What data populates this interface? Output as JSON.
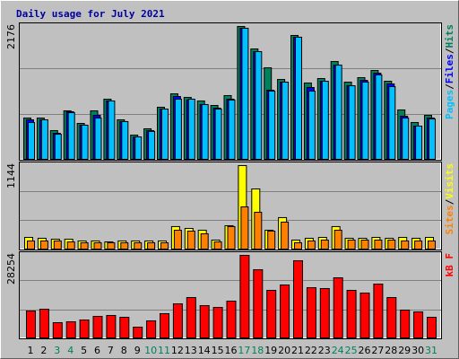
{
  "chart_data": [
    {
      "type": "bar",
      "title": "Daily usage for July 2021",
      "categories": [
        "1",
        "2",
        "3",
        "4",
        "5",
        "6",
        "7",
        "8",
        "9",
        "10",
        "11",
        "12",
        "13",
        "14",
        "15",
        "16",
        "17",
        "18",
        "19",
        "20",
        "21",
        "22",
        "23",
        "24",
        "25",
        "26",
        "27",
        "28",
        "29",
        "30",
        "31"
      ],
      "category_colors": [
        "#000000",
        "#000000",
        "#00805c",
        "#00805c",
        "#000000",
        "#000000",
        "#000000",
        "#000000",
        "#000000",
        "#00805c",
        "#00805c",
        "#000000",
        "#000000",
        "#000000",
        "#000000",
        "#000000",
        "#00805c",
        "#00805c",
        "#000000",
        "#000000",
        "#000000",
        "#000000",
        "#000000",
        "#00805c",
        "#00805c",
        "#000000",
        "#000000",
        "#000000",
        "#000000",
        "#000000",
        "#00805c"
      ],
      "legend_separator": "/",
      "ylim": [
        0,
        2176
      ],
      "yticks": [
        2176
      ],
      "series": [
        {
          "name": "Hits",
          "color": "#00805c",
          "values": [
            676,
            676,
            470,
            794,
            588,
            794,
            985,
            647,
            397,
            500,
            853,
            1073,
            1014,
            956,
            882,
            1044,
            2176,
            1808,
            1499,
            1308,
            2029,
            1250,
            1323,
            1602,
            1264,
            1338,
            1455,
            1279,
            809,
            603,
            720
          ]
        },
        {
          "name": "Files",
          "color": "#0000ff",
          "values": [
            647,
            647,
            426,
            779,
            559,
            720,
            956,
            618,
            367,
            470,
            823,
            1029,
            970,
            897,
            838,
            985,
            2147,
            1764,
            1132,
            1264,
            2000,
            1176,
            1279,
            1543,
            1205,
            1293,
            1411,
            1235,
            706,
            544,
            676
          ]
        },
        {
          "name": "Pages",
          "color": "#00c0ff",
          "values": [
            603,
            647,
            411,
            764,
            559,
            676,
            956,
            618,
            367,
            456,
            823,
            985,
            985,
            897,
            823,
            970,
            2147,
            1764,
            1117,
            1264,
            2000,
            1117,
            1279,
            1543,
            1205,
            1264,
            1382,
            1191,
            676,
            544,
            661
          ]
        }
      ]
    },
    {
      "type": "bar",
      "ylim": [
        0,
        1144
      ],
      "yticks": [
        1144
      ],
      "series": [
        {
          "name": "Visits",
          "color": "#ffff00",
          "values": [
            160,
            148,
            135,
            135,
            111,
            111,
            98,
            111,
            111,
            111,
            111,
            308,
            283,
            258,
            123,
            320,
            1144,
            824,
            258,
            431,
            123,
            148,
            160,
            308,
            148,
            148,
            160,
            148,
            160,
            148,
            160
          ]
        },
        {
          "name": "Sites",
          "color": "#ff8000",
          "values": [
            111,
            111,
            111,
            98,
            86,
            86,
            86,
            86,
            86,
            86,
            86,
            258,
            246,
            209,
            98,
            308,
            578,
            504,
            246,
            369,
            86,
            111,
            123,
            258,
            123,
            123,
            123,
            123,
            111,
            111,
            111
          ]
        }
      ]
    },
    {
      "type": "bar",
      "ylim": [
        0,
        28254
      ],
      "yticks": [
        28254
      ],
      "series": [
        {
          "name": "kB F",
          "color": "#ff0000",
          "values": [
            9210,
            9824,
            5219,
            5526,
            6140,
            7368,
            7675,
            7061,
            3684,
            5833,
            8289,
            11666,
            13815,
            11052,
            10438,
            12587,
            28254,
            23332,
            16271,
            18113,
            26402,
            17192,
            16885,
            20569,
            16271,
            15350,
            18420,
            13815,
            9517,
            8903,
            7061
          ]
        }
      ]
    }
  ]
}
